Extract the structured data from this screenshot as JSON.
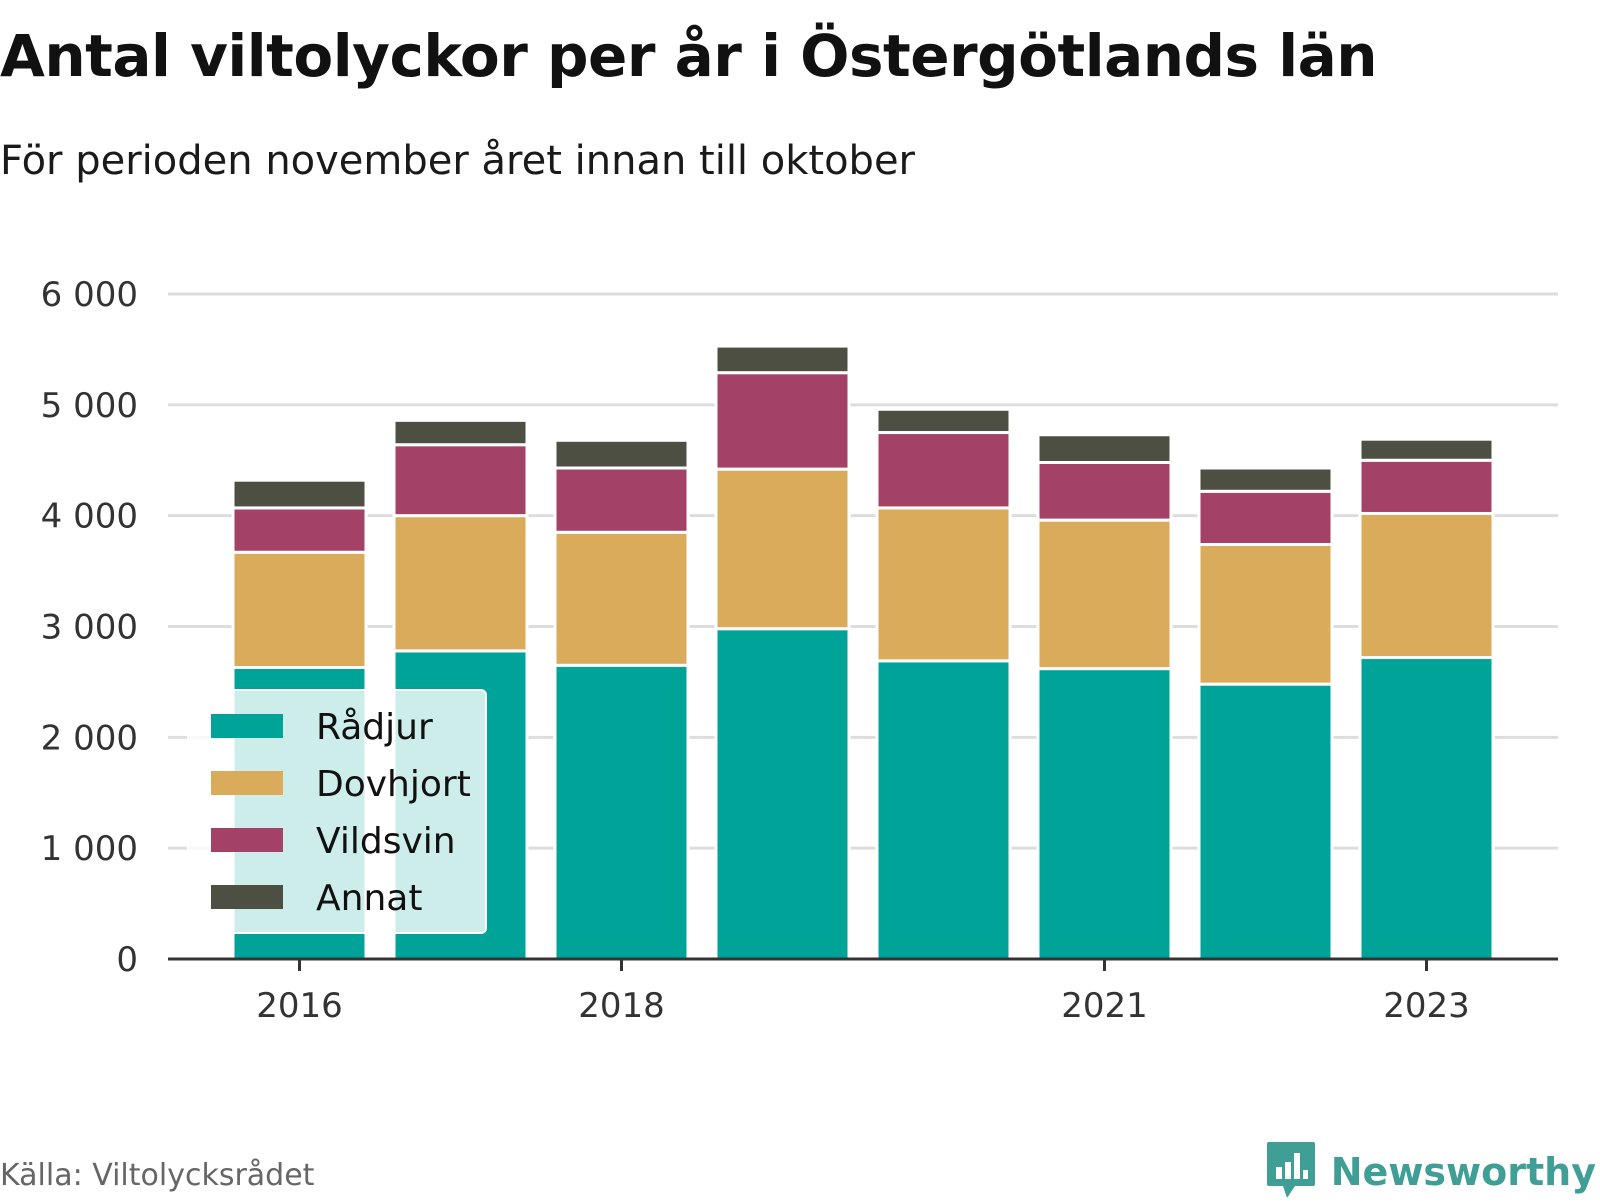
{
  "header": {
    "title": "Antal viltolyckor per år i Östergötlands län",
    "subtitle": "För perioden november året innan till oktober"
  },
  "footer": {
    "source": "Källa: Viltolycksrådet",
    "brand": "Newsworthy",
    "brand_icon": "bar-chart-speech-bubble-icon"
  },
  "colors": {
    "radjur": "#00a398",
    "dovhjort": "#d9ab5a",
    "vildsvin": "#a44166",
    "annat": "#4c4f42",
    "brand": "#3f9e95"
  },
  "chart_data": {
    "type": "bar",
    "stacked": true,
    "title": "Antal viltolyckor per år i Östergötlands län",
    "subtitle": "För perioden november året innan till oktober",
    "categories": [
      2016,
      2017,
      2018,
      2019,
      2020,
      2021,
      2022,
      2023
    ],
    "x_tick_labels": [
      "2016",
      "2018",
      "2021",
      "2023"
    ],
    "x_tick_values": [
      2016,
      2018,
      2021,
      2023
    ],
    "y_ticks": [
      0,
      1000,
      2000,
      3000,
      4000,
      5000,
      6000
    ],
    "y_tick_labels": [
      "0",
      "1 000",
      "2 000",
      "3 000",
      "4 000",
      "5 000",
      "6 000"
    ],
    "ylim": [
      0,
      6000
    ],
    "grid": true,
    "legend_position": "bottom-left",
    "series": [
      {
        "name": "Rådjur",
        "color": "#00a398",
        "values": [
          2630,
          2780,
          2650,
          2980,
          2690,
          2620,
          2480,
          2720
        ]
      },
      {
        "name": "Dovhjort",
        "color": "#d9ab5a",
        "values": [
          1040,
          1220,
          1200,
          1440,
          1380,
          1340,
          1260,
          1300
        ]
      },
      {
        "name": "Vildsvin",
        "color": "#a44166",
        "values": [
          400,
          640,
          580,
          870,
          680,
          520,
          480,
          480
        ]
      },
      {
        "name": "Annat",
        "color": "#4c4f42",
        "values": [
          250,
          220,
          250,
          240,
          210,
          250,
          210,
          190
        ]
      }
    ]
  }
}
